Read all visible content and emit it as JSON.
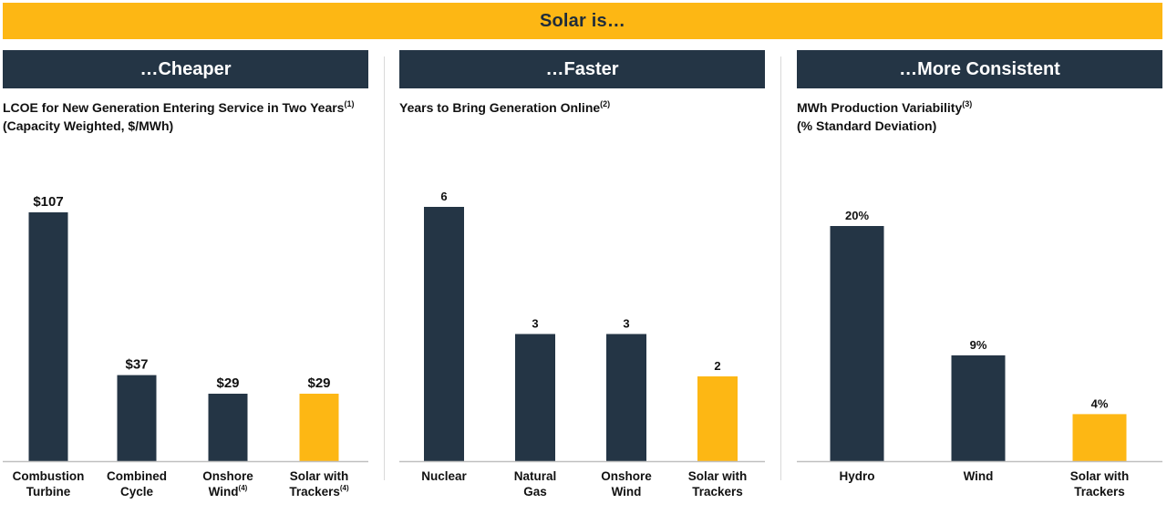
{
  "banner": "Solar is…",
  "panels": [
    {
      "header": "…Cheaper",
      "subtitle_line1": "LCOE for New Generation Entering Service in Two Years",
      "subtitle_line1_sup": "(1)",
      "subtitle_line2": "(Capacity Weighted, $/MWh)"
    },
    {
      "header": "…Faster",
      "subtitle_line1": "Years to Bring Generation Online",
      "subtitle_line1_sup": "(2)",
      "subtitle_line2": ""
    },
    {
      "header": "…More Consistent",
      "subtitle_line1": "MWh Production Variability",
      "subtitle_line1_sup": "(3)",
      "subtitle_line2": "(% Standard Deviation)"
    }
  ],
  "colors": {
    "accent": "#FDB714",
    "bar": "#243545",
    "header_bg": "#243545",
    "axis": "#bfbfbf"
  },
  "chart_data": [
    {
      "type": "bar",
      "categories": [
        [
          "Combustion",
          "Turbine"
        ],
        [
          "Combined",
          "Cycle"
        ],
        [
          "Onshore",
          "Wind"
        ],
        [
          "Solar with",
          "Trackers"
        ]
      ],
      "category_sups": [
        "",
        "",
        "(4)",
        "(4)"
      ],
      "values": [
        107,
        37,
        29,
        29
      ],
      "data_labels": [
        "$107",
        "$37",
        "$29",
        "$29"
      ],
      "highlight_index": 3,
      "ylim": [
        0,
        107
      ]
    },
    {
      "type": "bar",
      "categories": [
        [
          "Nuclear"
        ],
        [
          "Natural",
          "Gas"
        ],
        [
          "Onshore",
          "Wind"
        ],
        [
          "Solar with",
          "Trackers"
        ]
      ],
      "category_sups": [
        "",
        "",
        "",
        ""
      ],
      "values": [
        6,
        3,
        3,
        2
      ],
      "data_labels": [
        "6",
        "3",
        "3",
        "2"
      ],
      "highlight_index": 3,
      "ylim": [
        0,
        6
      ]
    },
    {
      "type": "bar",
      "categories": [
        [
          "Hydro"
        ],
        [
          "Wind"
        ],
        [
          "Solar with",
          "Trackers"
        ]
      ],
      "category_sups": [
        "",
        "",
        ""
      ],
      "values": [
        20,
        9,
        4
      ],
      "data_labels": [
        "20%",
        "9%",
        "4%"
      ],
      "highlight_index": 2,
      "ylim": [
        0,
        20
      ]
    }
  ]
}
